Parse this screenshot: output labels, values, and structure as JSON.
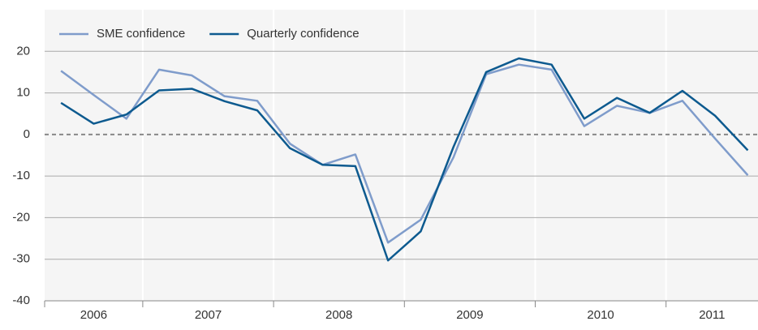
{
  "chart_data": {
    "type": "line",
    "categories": [
      "2006",
      null,
      null,
      "2007",
      null,
      null,
      null,
      "2008",
      null,
      null,
      null,
      "2009",
      null,
      null,
      null,
      "2010",
      null,
      null,
      null,
      "2011",
      null,
      null
    ],
    "series": [
      {
        "name": "SME confidence",
        "color": "#7f9ccb",
        "values": [
          15.3,
          9.5,
          3.8,
          15.6,
          14.2,
          9.2,
          8.1,
          -2.2,
          -7.3,
          -4.8,
          -26,
          -20.5,
          -5.5,
          14.5,
          16.8,
          15.6,
          2.0,
          6.9,
          5.2,
          8.1,
          -1,
          -9.8
        ]
      },
      {
        "name": "Quarterly confidence",
        "color": "#0d5a8f",
        "values": [
          7.6,
          2.6,
          4.8,
          10.6,
          11.0,
          8.0,
          5.8,
          -3.3,
          -7.3,
          -7.6,
          -30.3,
          -23.3,
          -3.0,
          15.0,
          18.3,
          16.8,
          3.8,
          8.8,
          5.2,
          10.5,
          4.5,
          -3.8
        ]
      }
    ],
    "ylim": [
      -40,
      30
    ],
    "yticks": [
      -40,
      -30,
      -20,
      -10,
      0,
      10,
      20
    ],
    "grid": true,
    "legend": "top-left"
  }
}
